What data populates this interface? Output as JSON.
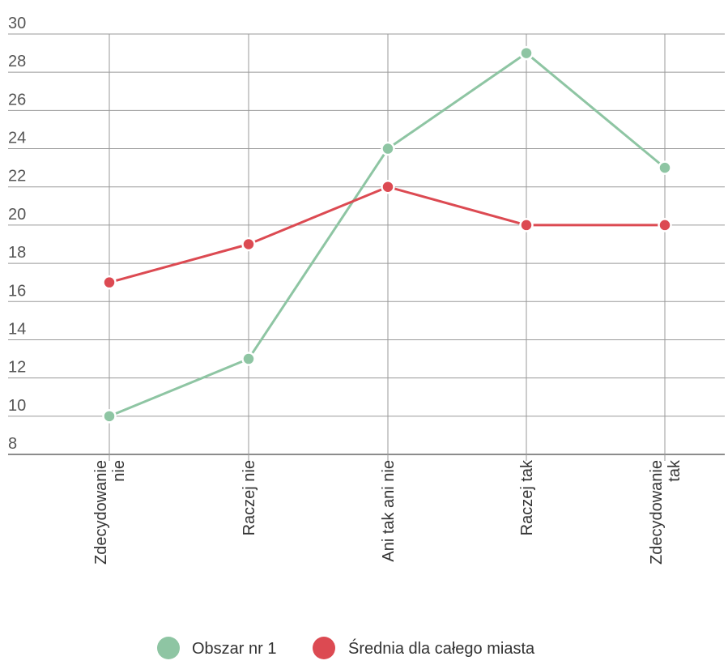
{
  "chart_data": {
    "type": "line",
    "title": "",
    "xlabel": "",
    "ylabel": "",
    "categories": [
      [
        "Zdecydowanie",
        "nie"
      ],
      [
        "Raczej nie"
      ],
      [
        "Ani tak ani nie"
      ],
      [
        "Raczej tak"
      ],
      [
        "Zdecydowanie",
        "tak"
      ]
    ],
    "ylim": [
      8,
      30
    ],
    "yticks": [
      "8",
      "10",
      "12",
      "14",
      "16",
      "18",
      "20",
      "22",
      "24",
      "26",
      "28",
      "30"
    ],
    "grid": true,
    "legend_position": "bottom",
    "series": [
      {
        "name": "Obszar nr 1",
        "color": "#8ec5a3",
        "values": [
          10,
          13,
          24,
          29,
          23
        ]
      },
      {
        "name": "Średnia dla całego miasta",
        "color": "#dc4a52",
        "values": [
          17,
          19,
          22,
          20,
          20
        ]
      }
    ]
  }
}
